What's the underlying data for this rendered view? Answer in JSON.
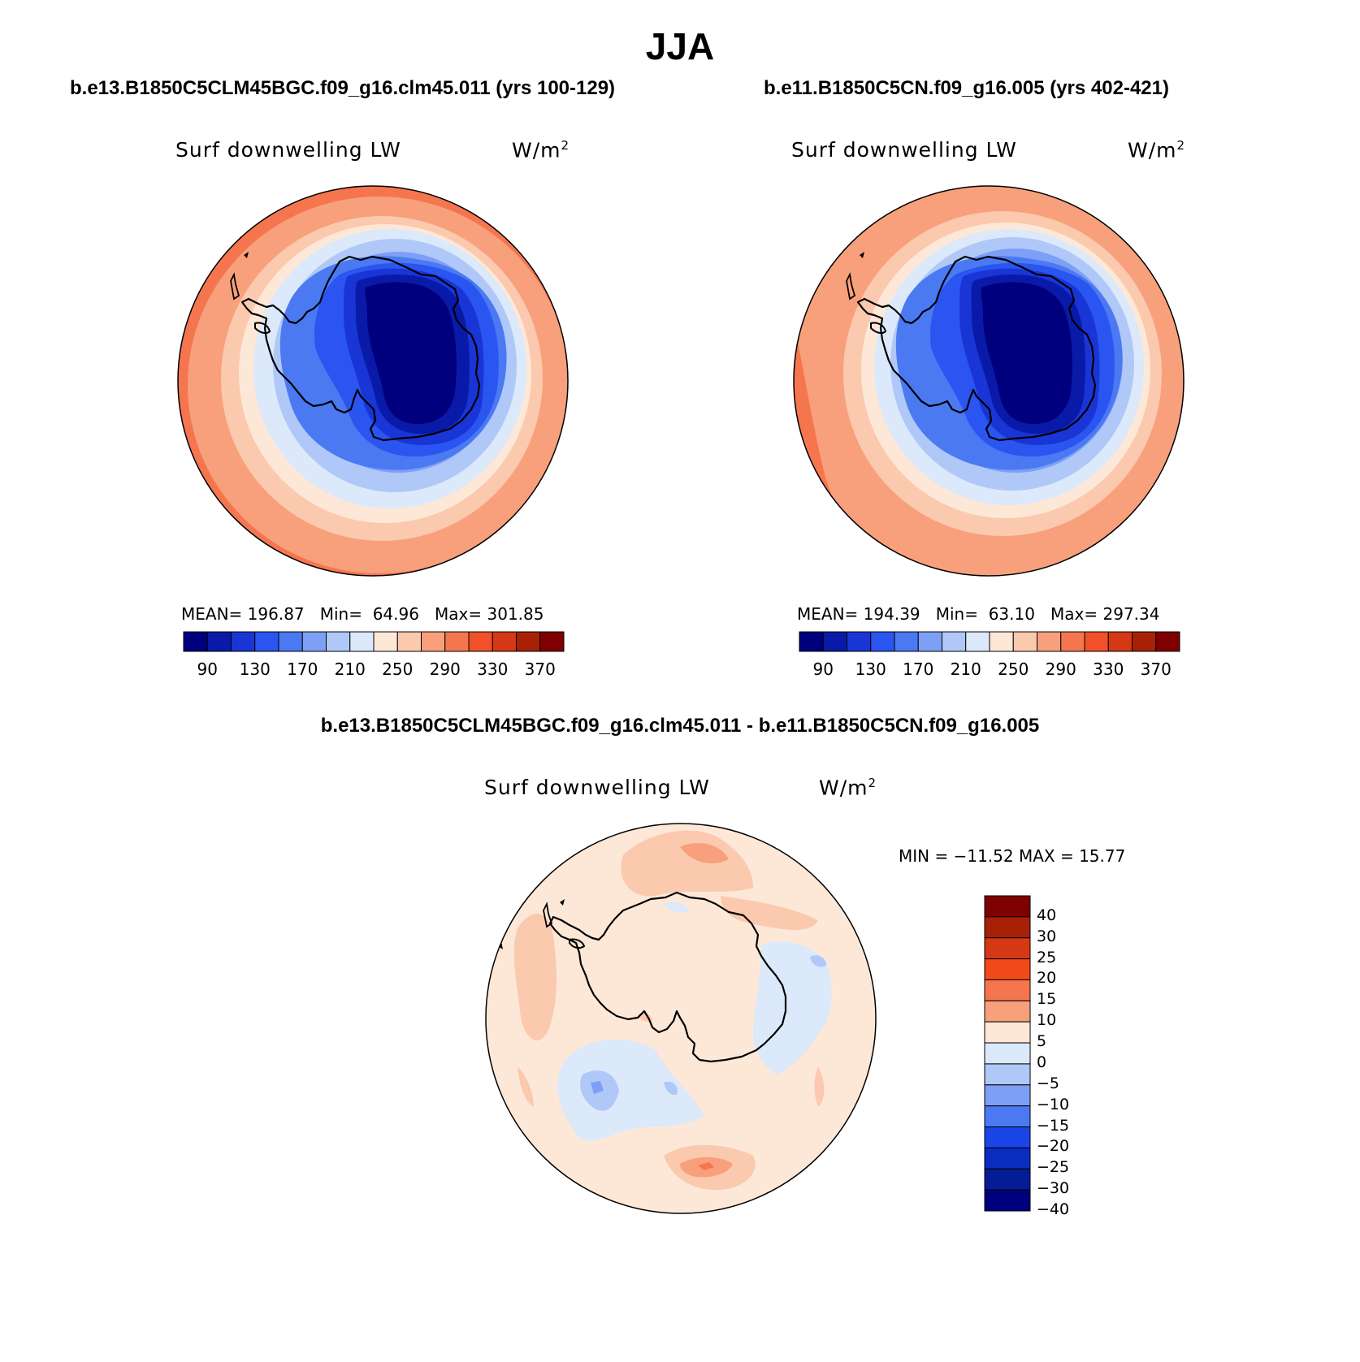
{
  "season": "JJA",
  "panels": {
    "case1": {
      "case_title": "b.e13.B1850C5CLM45BGC.f09_g16.clm45.011 (yrs 100-129)",
      "variable": "Surf downwelling LW",
      "units_base": "W/m",
      "units_exp": "2",
      "mean_label": "MEAN=",
      "mean": "196.87",
      "min_label": "Min=",
      "min": "64.96",
      "max_label": "Max=",
      "max": "301.85"
    },
    "case2": {
      "case_title": "b.e11.B1850C5CN.f09_g16.005 (yrs 402-421)",
      "variable": "Surf downwelling LW",
      "units_base": "W/m",
      "units_exp": "2",
      "mean_label": "MEAN=",
      "mean": "194.39",
      "min_label": "Min=",
      "min": "63.10",
      "max_label": "Max=",
      "max": "297.34"
    },
    "diff": {
      "case_title": "b.e13.B1850C5CLM45BGC.f09_g16.clm45.011 - b.e11.B1850C5CN.f09_g16.005",
      "variable": "Surf downwelling LW",
      "units_base": "W/m",
      "units_exp": "2",
      "minmax": "MIN = −11.52 MAX =  15.77"
    }
  },
  "colorbar_main": {
    "colors": [
      "#00007f",
      "#0a1aa8",
      "#1a35d6",
      "#2a55f0",
      "#4a79f2",
      "#7d9ff5",
      "#b0c8f8",
      "#dbe9fb",
      "#fde8d8",
      "#fbc9ae",
      "#f8a07c",
      "#f5764e",
      "#f0502a",
      "#d53814",
      "#a82006",
      "#7f0000"
    ],
    "ticks": [
      "90",
      "130",
      "170",
      "210",
      "250",
      "290",
      "330",
      "370"
    ],
    "levels": [
      90,
      110,
      130,
      150,
      170,
      190,
      210,
      230,
      250,
      270,
      290,
      310,
      330,
      350,
      370
    ]
  },
  "colorbar_diff": {
    "colors": [
      "#7f0000",
      "#a82006",
      "#d53814",
      "#f04a18",
      "#f5764e",
      "#f8a07c",
      "#fde8d8",
      "#dbe9fb",
      "#b0c8f8",
      "#7d9ff5",
      "#4a79f2",
      "#1a45e6",
      "#0a2dc0",
      "#061c96",
      "#00007f"
    ],
    "ticks": [
      "40",
      "30",
      "25",
      "20",
      "15",
      "10",
      "5",
      "0",
      "−5",
      "−10",
      "−15",
      "−20",
      "−25",
      "−30",
      "−40"
    ]
  }
}
